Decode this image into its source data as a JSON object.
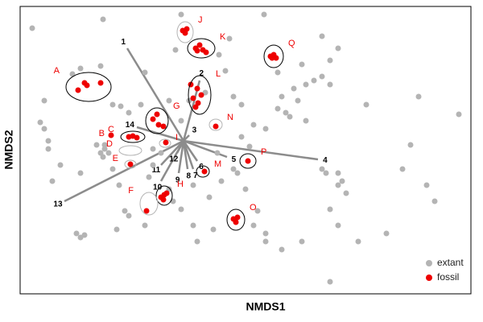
{
  "chart_data": {
    "type": "scatter",
    "xlabel": "NMDS1",
    "ylabel": "NMDS2",
    "xlim": [
      0,
      560
    ],
    "ylim": [
      0,
      357
    ],
    "legend": "lower right",
    "series": [
      {
        "name": "extant",
        "color": "#b4b4b4",
        "x": [
          103,
          200,
          303,
          15,
          260,
          193,
          247,
          255,
          75,
          100,
          65,
          155,
          30,
          25,
          35,
          50,
          40,
          75,
          115,
          125,
          135,
          150,
          105,
          100,
          103,
          95,
          115,
          123,
          130,
          135,
          70,
          75,
          80,
          120,
          155,
          175,
          165,
          160,
          185,
          190,
          200,
          215,
          235,
          245,
          250,
          265,
          270,
          280,
          295,
          290,
          305,
          305,
          320,
          325,
          330,
          335,
          340,
          345,
          355,
          365,
          375,
          385,
          320,
          350,
          385,
          395,
          400,
          375,
          380,
          385,
          395,
          405,
          430,
          495,
          545,
          485,
          475,
          505,
          515,
          385,
          350,
          325,
          420,
          455,
          35,
          30,
          185,
          200,
          265,
          275,
          215,
          240,
          220,
          275,
          285,
          290,
          375,
          395,
          355,
          305,
          165,
          105,
          110,
          230,
          210,
          395
        ],
        "y": [
          341,
          347,
          347,
          330,
          317,
          303,
          297,
          277,
          280,
          283,
          273,
          275,
          240,
          213,
          180,
          160,
          140,
          150,
          235,
          233,
          225,
          235,
          180,
          175,
          170,
          185,
          155,
          135,
          103,
          97,
          75,
          70,
          73,
          80,
          85,
          175,
          160,
          145,
          130,
          115,
          105,
          135,
          120,
          175,
          140,
          155,
          150,
          130,
          103,
          85,
          75,
          205,
          230,
          245,
          225,
          220,
          255,
          240,
          260,
          265,
          270,
          260,
          275,
          285,
          290,
          135,
          140,
          155,
          150,
          105,
          85,
          125,
          235,
          245,
          223,
          185,
          155,
          135,
          115,
          15,
          65,
          55,
          65,
          75,
          190,
          205,
          240,
          215,
          245,
          235,
          85,
          80,
          65,
          195,
          183,
          210,
          320,
          305,
          215,
          65,
          180,
          185,
          175,
          250,
          240,
          150
        ]
      },
      {
        "name": "fossil",
        "color": "#ee0000",
        "x": [
          72,
          80,
          83,
          100,
          202,
          205,
          207,
          218,
          223,
          227,
          231,
          220,
          311,
          315,
          318,
          313,
          212,
          215,
          221,
          218,
          225,
          220,
          165,
          172,
          178,
          170,
          243,
          113,
          135,
          140,
          145,
          181,
          137,
          229,
          283,
          175,
          179,
          182,
          178,
          157,
          265,
          270,
          268
        ],
        "y": [
          253,
          262,
          259,
          262,
          327,
          324,
          329,
          305,
          309,
          303,
          300,
          302,
          295,
          297,
          293,
          293,
          260,
          243,
          237,
          232,
          247,
          255,
          217,
          210,
          208,
          223,
          208,
          197,
          195,
          196,
          194,
          188,
          161,
          152,
          165,
          120,
          123,
          125,
          117,
          103,
          93,
          95,
          89
        ]
      }
    ],
    "groups": [
      {
        "label": "A",
        "x": 85,
        "y": 257,
        "rx": 28,
        "ry": 18,
        "color": "#000000"
      },
      {
        "label": "J",
        "x": 205,
        "y": 325,
        "rx": 10,
        "ry": 13,
        "color": "#b4b4b4"
      },
      {
        "label": "K",
        "x": 225,
        "y": 305,
        "rx": 17,
        "ry": 12,
        "color": "#000000"
      },
      {
        "label": "Q",
        "x": 315,
        "y": 295,
        "rx": 12,
        "ry": 14,
        "color": "#000000"
      },
      {
        "label": "L",
        "x": 223,
        "y": 247,
        "rx": 14,
        "ry": 24,
        "color": "#000000"
      },
      {
        "label": "G",
        "x": 170,
        "y": 215,
        "rx": 14,
        "ry": 16,
        "color": "#000000"
      },
      {
        "label": "N",
        "x": 243,
        "y": 210,
        "rx": 8,
        "ry": 7,
        "color": "#b4b4b4"
      },
      {
        "label": "B",
        "x": 113,
        "y": 197
      },
      {
        "label": "C",
        "x": 140,
        "y": 195,
        "rx": 15,
        "ry": 7,
        "color": "#000000"
      },
      {
        "label": "D",
        "x": 137,
        "y": 178,
        "rx": 14,
        "ry": 6,
        "color": "#b4b4b4"
      },
      {
        "label": "I",
        "x": 180,
        "y": 187,
        "rx": 7,
        "ry": 5,
        "color": "#b4b4b4"
      },
      {
        "label": "E",
        "x": 137,
        "y": 161,
        "rx": 7,
        "ry": 5,
        "color": "#b4b4b4"
      },
      {
        "label": "M",
        "x": 227,
        "y": 152,
        "rx": 8,
        "ry": 7,
        "color": "#000000"
      },
      {
        "label": "P",
        "x": 283,
        "y": 165,
        "rx": 10,
        "ry": 9,
        "color": "#000000"
      },
      {
        "label": "H",
        "x": 179,
        "y": 122,
        "rx": 10,
        "ry": 12,
        "color": "#000000"
      },
      {
        "label": "F",
        "x": 160,
        "y": 112,
        "rx": 11,
        "ry": 14,
        "color": "#b4b4b4"
      },
      {
        "label": "O",
        "x": 268,
        "y": 92,
        "rx": 11,
        "ry": 13,
        "color": "#000000"
      }
    ],
    "vectors": {
      "origin": [
        203,
        190
      ],
      "color": "#8c8c8c",
      "lines": [
        {
          "label": "1",
          "x": 133,
          "y": 305
        },
        {
          "label": "2",
          "x": 223,
          "y": 265
        },
        {
          "label": "3",
          "x": 210,
          "y": 197
        },
        {
          "label": "4",
          "x": 370,
          "y": 167
        },
        {
          "label": "5",
          "x": 257,
          "y": 170
        },
        {
          "label": "6",
          "x": 220,
          "y": 165
        },
        {
          "label": "7",
          "x": 215,
          "y": 155
        },
        {
          "label": "8",
          "x": 208,
          "y": 155
        },
        {
          "label": "9",
          "x": 197,
          "y": 150
        },
        {
          "label": "10",
          "x": 175,
          "y": 140
        },
        {
          "label": "11",
          "x": 175,
          "y": 160
        },
        {
          "label": "12",
          "x": 195,
          "y": 175
        },
        {
          "label": "13",
          "x": 55,
          "y": 115
        },
        {
          "label": "14",
          "x": 145,
          "y": 207
        }
      ]
    }
  }
}
